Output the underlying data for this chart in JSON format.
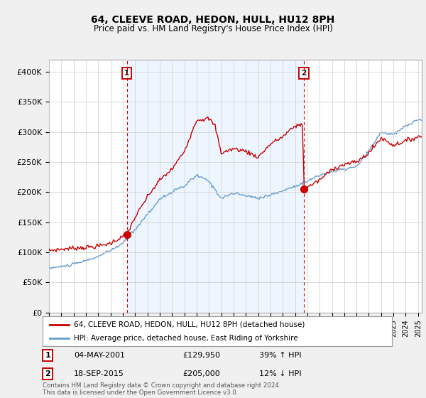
{
  "title": "64, CLEEVE ROAD, HEDON, HULL, HU12 8PH",
  "subtitle": "Price paid vs. HM Land Registry's House Price Index (HPI)",
  "legend_label_red": "64, CLEEVE ROAD, HEDON, HULL, HU12 8PH (detached house)",
  "legend_label_blue": "HPI: Average price, detached house, East Riding of Yorkshire",
  "annotation1_date": "04-MAY-2001",
  "annotation1_price": "£129,950",
  "annotation1_hpi": "39% ↑ HPI",
  "annotation1_year": 2001.33,
  "annotation1_value": 129950,
  "annotation2_date": "18-SEP-2015",
  "annotation2_price": "£205,000",
  "annotation2_hpi": "12% ↓ HPI",
  "annotation2_year": 2015.72,
  "annotation2_value": 205000,
  "footer": "Contains HM Land Registry data © Crown copyright and database right 2024.\nThis data is licensed under the Open Government Licence v3.0.",
  "ylim": [
    0,
    420000
  ],
  "yticks": [
    0,
    50000,
    100000,
    150000,
    200000,
    250000,
    300000,
    350000,
    400000
  ],
  "ytick_labels": [
    "£0",
    "£50K",
    "£100K",
    "£150K",
    "£200K",
    "£250K",
    "£300K",
    "£350K",
    "£400K"
  ],
  "color_red": "#cc0000",
  "color_blue": "#6699cc",
  "shade_color": "#ddeeff",
  "background_color": "#f0f0f0",
  "plot_bg_color": "#ffffff",
  "shade_alpha": 0.5
}
